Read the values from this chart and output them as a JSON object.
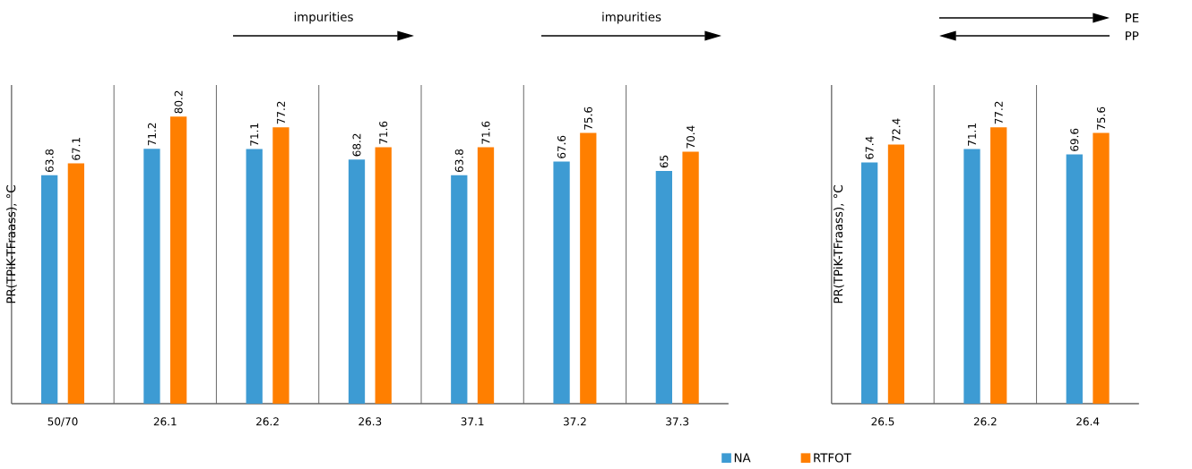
{
  "chart_data": [
    {
      "type": "bar",
      "ylabel": "PR(TPiK-TFraass), °C",
      "categories": [
        "50/70",
        "26.1",
        "26.2",
        "26.3",
        "37.1",
        "37.2",
        "37.3"
      ],
      "series": [
        {
          "color": "#3d9bd3",
          "values": [
            63.8,
            71.2,
            71.1,
            68.2,
            63.8,
            67.6,
            65
          ]
        },
        {
          "color": "#ff7f00",
          "values": [
            67.1,
            80.2,
            77.2,
            71.6,
            71.6,
            75.6,
            70.4
          ]
        }
      ],
      "ylim": [
        0,
        89
      ],
      "data_labels": true,
      "grid": "x",
      "annotations": [
        "impurities",
        "impurities"
      ]
    },
    {
      "type": "bar",
      "ylabel": "PR(TPiK-TFraass), °C",
      "categories": [
        "26.5",
        "26.2",
        "26.4"
      ],
      "series": [
        {
          "name": "NA",
          "color": "#3d9bd3",
          "values": [
            67.4,
            71.1,
            69.6
          ]
        },
        {
          "name": "RTFOT",
          "color": "#ff7f00",
          "values": [
            72.4,
            77.2,
            75.6
          ]
        }
      ],
      "ylim": [
        0,
        89
      ],
      "data_labels": true,
      "grid": "x",
      "legend": "bottom",
      "annotations": [
        "PE",
        "PP"
      ]
    }
  ]
}
